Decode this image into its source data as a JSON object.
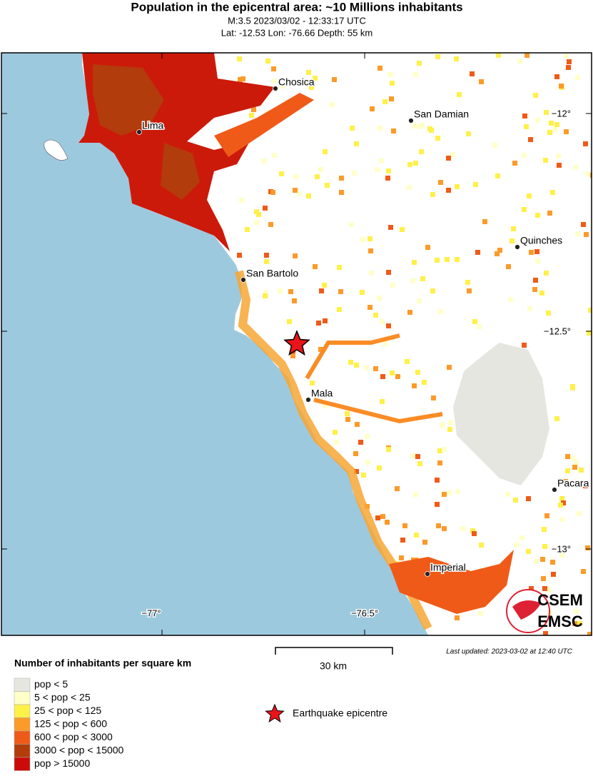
{
  "header": {
    "title": "Population in the epicentral area: ~10 Millions inhabitants",
    "event": "M:3.5 2023/03/02 - 12:33:17 UTC",
    "location": "Lat: -12.53 Lon: -76.66 Depth: 55 km"
  },
  "map": {
    "cities": [
      "Chosica",
      "San Damian",
      "Lima",
      "Quinches",
      "San Bartolo",
      "Mala",
      "Pacara",
      "Imperial"
    ],
    "lat_labels": [
      "−12°",
      "−12.5°",
      "−13°"
    ],
    "lon_labels": [
      "−77°",
      "−76.5°"
    ],
    "scale_bar": "30 km",
    "last_updated": "Last updated: 2023-03-02 at 12:40 UTC",
    "logo": [
      "CSEM",
      "EMSC"
    ]
  },
  "legend": {
    "title": "Number of inhabitants per square km",
    "items": [
      {
        "label": "pop < 5",
        "color": "#e6e6e1"
      },
      {
        "label": "5 < pop < 25",
        "color": "#ffffc8"
      },
      {
        "label": "25 < pop < 125",
        "color": "#fff04a"
      },
      {
        "label": "125 < pop < 600",
        "color": "#fc9a2a"
      },
      {
        "label": "600 < pop < 3000",
        "color": "#f05a18"
      },
      {
        "label": "3000 < pop < 15000",
        "color": "#b23c0c"
      },
      {
        "label": "pop > 15000",
        "color": "#cc0a0a"
      }
    ],
    "epicentre": "Earthquake epicentre"
  }
}
